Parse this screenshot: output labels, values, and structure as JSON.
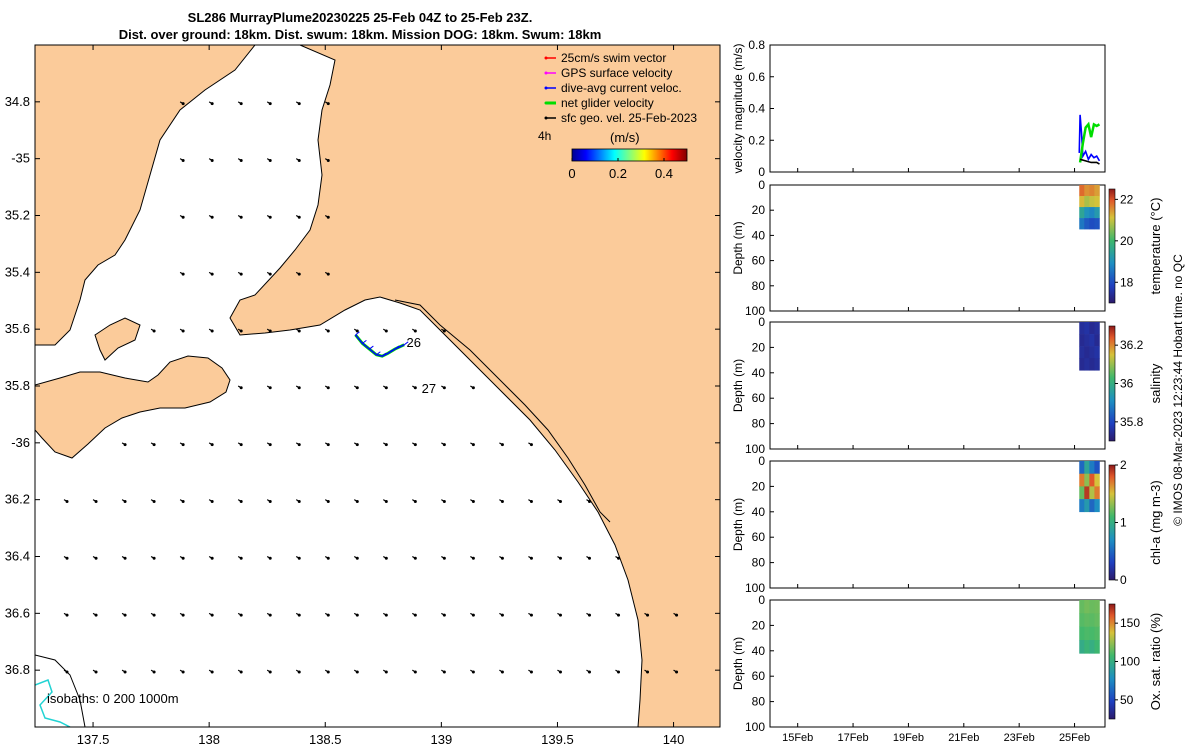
{
  "title": {
    "line1": "SL286 MurrayPlume20230225 25-Feb 04Z to 25-Feb 23Z.",
    "line2": "Dist. over ground: 18km. Dist. swum: 18km. Mission DOG: 18km. Swum: 18km"
  },
  "chart_data": [
    {
      "type": "map",
      "xlim": [
        137.25,
        140.2
      ],
      "ylim": [
        -37.0,
        -34.6
      ],
      "x_ticks": [
        137.5,
        138,
        138.5,
        139,
        139.5,
        140
      ],
      "x_tick_labels": [
        "137.5",
        "138",
        "138.5",
        "139",
        "139.5",
        "140"
      ],
      "y_ticks": [
        -34.8,
        -35.0,
        -35.2,
        -35.4,
        -35.6,
        -35.8,
        -36.0,
        -36.2,
        -36.4,
        -36.6,
        -36.8
      ],
      "y_tick_labels": [
        "34.8",
        "-35",
        "35.2",
        "35.4",
        "35.6",
        "35.8",
        "-36",
        "36.2",
        "36.4",
        "36.6",
        "36.8"
      ],
      "legend": [
        {
          "label": "25cm/s swim vector",
          "color": "#ff0000"
        },
        {
          "label": "GPS surface velocity",
          "color": "#ff00ff"
        },
        {
          "label": "dive-avg current veloc.",
          "color": "#0000ff"
        },
        {
          "label": "net glider velocity",
          "color": "#00dd00"
        },
        {
          "label": "sfc geo. vel. 25-Feb-2023",
          "color": "#000000"
        }
      ],
      "legend_placement": "top-right",
      "colorbar": {
        "label": "(m/s)",
        "ticks": [
          "0",
          "0.2",
          "0.4"
        ],
        "range": [
          0,
          0.5
        ]
      },
      "time_label": "4h",
      "isobaths_label": "isobaths: 0   200  1000m",
      "track": {
        "lon": [
          138.63,
          138.66,
          138.69,
          138.72,
          138.745,
          138.77,
          138.8,
          138.84
        ],
        "lat": [
          -35.62,
          -35.65,
          -35.67,
          -35.69,
          -35.695,
          -35.685,
          -35.67,
          -35.655
        ],
        "day_labels": [
          {
            "text": "26",
            "lon": 138.85,
            "lat": -35.662
          },
          {
            "text": "27",
            "lon": 138.915,
            "lat": -35.825
          }
        ]
      },
      "geo_vectors": {
        "lon": [
          137.5,
          137.75,
          138.0,
          138.25,
          138.5,
          138.75,
          139.0,
          139.25,
          139.5,
          139.75,
          140.0
        ],
        "lat": [
          -34.8,
          -35.0,
          -35.2,
          -35.4,
          -35.6,
          -35.8,
          -36.0,
          -36.2,
          -36.4,
          -36.6,
          -36.8
        ],
        "u": 0.05,
        "v": -0.03
      }
    },
    {
      "type": "line",
      "ylabel": "velocity magnitude (m/s)",
      "ylim": [
        0,
        0.8
      ],
      "y_ticks": [
        "0",
        "0.2",
        "0.4",
        "0.6",
        "0.8"
      ],
      "series": [
        {
          "color": "#0000ff",
          "x": [
            25.17,
            25.2,
            25.25,
            25.3,
            25.4,
            25.5,
            25.6,
            25.7,
            25.8,
            25.9
          ],
          "y": [
            0.12,
            0.36,
            0.25,
            0.1,
            0.13,
            0.08,
            0.11,
            0.09,
            0.1,
            0.07
          ]
        },
        {
          "color": "#00dd00",
          "x": [
            25.2,
            25.3,
            25.4,
            25.5,
            25.6,
            25.7,
            25.8,
            25.9
          ],
          "y": [
            0.06,
            0.18,
            0.28,
            0.3,
            0.22,
            0.3,
            0.29,
            0.3
          ]
        },
        {
          "color": "#000000",
          "x": [
            25.2,
            25.4,
            25.6,
            25.8,
            25.9
          ],
          "y": [
            0.08,
            0.07,
            0.06,
            0.06,
            0.05
          ]
        }
      ]
    },
    {
      "type": "heatmap",
      "ylabel": "Depth (m)",
      "ylim": [
        100,
        0
      ],
      "y_ticks": [
        "0",
        "20",
        "40",
        "60",
        "80",
        "100"
      ],
      "colorbar_label": "temperature (°C)",
      "colorbar_ticks": [
        "22",
        "20",
        "18"
      ],
      "clim": [
        17,
        22.5
      ],
      "values": [
        [
          21.8,
          21.5,
          21.6,
          21.4
        ],
        [
          21.2,
          20.8,
          21.0,
          21.1
        ],
        [
          19.5,
          19.0,
          18.8,
          19.2
        ],
        [
          18.6,
          18.2,
          18.0,
          18.1
        ]
      ],
      "x_start": 25.17,
      "x_end": 25.9,
      "depth_max": 35
    },
    {
      "type": "heatmap",
      "ylabel": "Depth (m)",
      "ylim": [
        100,
        0
      ],
      "y_ticks": [
        "0",
        "20",
        "40",
        "60",
        "80",
        "100"
      ],
      "colorbar_label": "salinity",
      "colorbar_ticks": [
        "36.2",
        "36",
        "35.8"
      ],
      "clim": [
        35.7,
        36.3
      ],
      "values": [
        [
          35.75,
          35.76,
          35.74,
          35.75
        ],
        [
          35.74,
          35.75,
          35.76,
          35.74
        ],
        [
          35.75,
          35.74,
          35.75,
          35.76
        ],
        [
          35.74,
          35.75,
          35.74,
          35.75
        ]
      ],
      "x_start": 25.17,
      "x_end": 25.9,
      "depth_max": 38
    },
    {
      "type": "heatmap",
      "ylabel": "Depth (m)",
      "ylim": [
        100,
        0
      ],
      "y_ticks": [
        "0",
        "20",
        "40",
        "60",
        "80",
        "100"
      ],
      "colorbar_label": "chl-a (mg m-3)",
      "colorbar_ticks": [
        "2",
        "1",
        "0"
      ],
      "clim": [
        0,
        2
      ],
      "values": [
        [
          0.5,
          0.9,
          0.6,
          0.4
        ],
        [
          1.7,
          1.3,
          1.8,
          1.5
        ],
        [
          1.2,
          1.9,
          1.4,
          1.7
        ],
        [
          0.6,
          0.8,
          0.5,
          0.7
        ]
      ],
      "x_start": 25.17,
      "x_end": 25.9,
      "depth_max": 40
    },
    {
      "type": "heatmap",
      "ylabel": "Depth (m)",
      "ylim": [
        100,
        0
      ],
      "y_ticks": [
        "0",
        "20",
        "40",
        "60",
        "80",
        "100"
      ],
      "colorbar_label": "Ox. sat. ratio (%)",
      "colorbar_ticks": [
        "150",
        "100",
        "50"
      ],
      "clim": [
        25,
        175
      ],
      "values": [
        [
          115,
          118,
          116,
          117
        ],
        [
          112,
          114,
          113,
          115
        ],
        [
          108,
          110,
          109,
          111
        ],
        [
          98,
          104,
          100,
          106
        ]
      ],
      "x_start": 25.17,
      "x_end": 25.9,
      "depth_max": 42,
      "x_ticks": [
        15,
        17,
        19,
        21,
        23,
        25
      ],
      "x_tick_labels": [
        "15Feb",
        "17Feb",
        "19Feb",
        "21Feb",
        "23Feb",
        "25Feb"
      ],
      "xlim": [
        14,
        26.1
      ]
    }
  ],
  "side_note": "© IMOS 08-Mar-2023 12:23:44 Hobart time. no QC"
}
